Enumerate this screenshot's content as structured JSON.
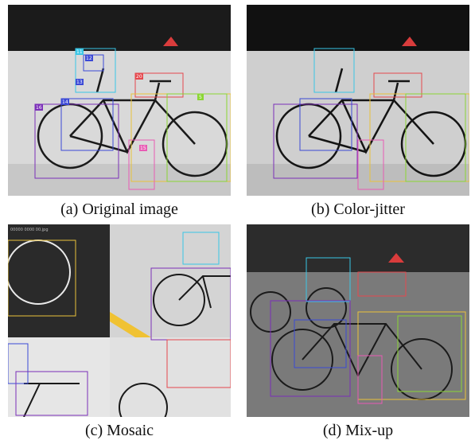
{
  "figure": {
    "panels": [
      {
        "id": "a",
        "caption": "(a) Original image"
      },
      {
        "id": "b",
        "caption": "(b) Color-jitter"
      },
      {
        "id": "c",
        "caption": "(c) Mosaic"
      },
      {
        "id": "d",
        "caption": "(d) Mix-up"
      }
    ],
    "box_labels": [
      "11",
      "12",
      "13",
      "14",
      "15",
      "16",
      "20",
      "5",
      "6",
      "8",
      "10"
    ],
    "mosaic_corner_text": "00000 0000 00.jpg",
    "colors": {
      "wall": "#d8d8d8",
      "dark": "#1c1c1c",
      "box_cyan": "#39c6e6",
      "box_blue": "#3b49d6",
      "box_purple": "#7b2fb8",
      "box_red": "#e5484d",
      "box_green": "#8bd634",
      "box_yellow": "#e9c23a",
      "box_pink": "#e85bb4"
    }
  }
}
